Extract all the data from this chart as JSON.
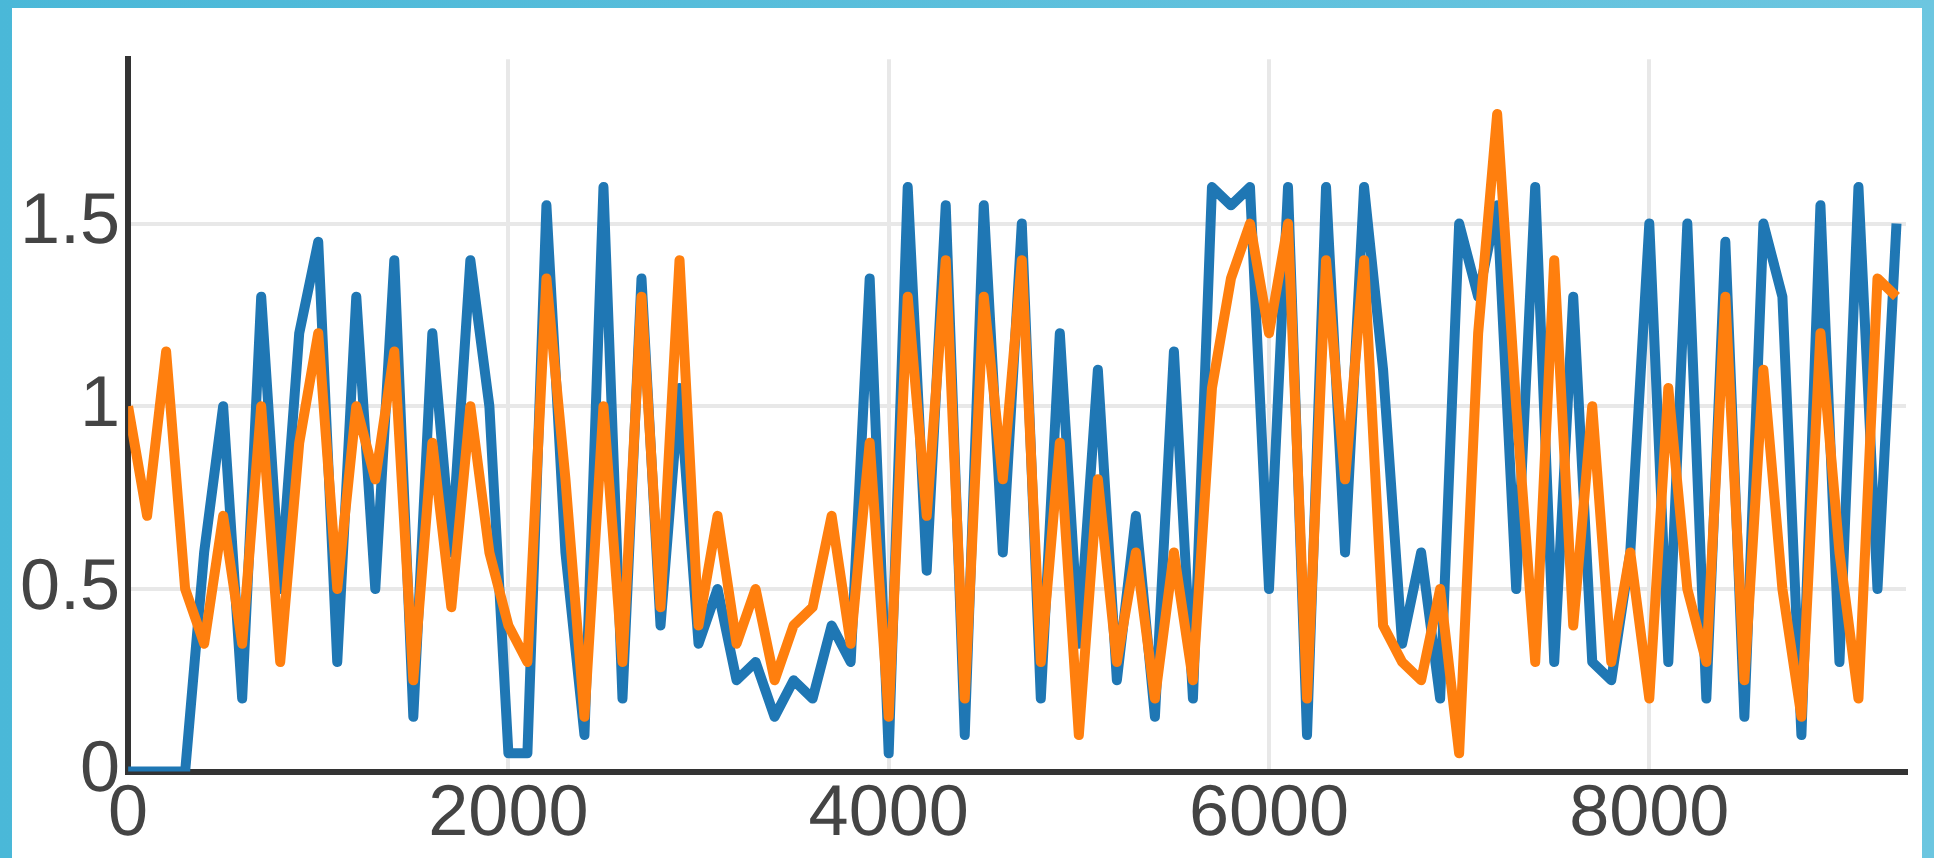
{
  "chart_data": {
    "type": "line",
    "x": [
      0,
      100,
      200,
      300,
      400,
      500,
      600,
      700,
      800,
      900,
      1000,
      1100,
      1200,
      1300,
      1400,
      1500,
      1600,
      1700,
      1800,
      1900,
      2000,
      2100,
      2200,
      2300,
      2400,
      2500,
      2600,
      2700,
      2800,
      2900,
      3000,
      3100,
      3200,
      3300,
      3400,
      3500,
      3600,
      3700,
      3800,
      3900,
      4000,
      4100,
      4200,
      4300,
      4400,
      4500,
      4600,
      4700,
      4800,
      4900,
      5000,
      5100,
      5200,
      5300,
      5400,
      5500,
      5600,
      5700,
      5800,
      5900,
      6000,
      6100,
      6200,
      6300,
      6400,
      6500,
      6600,
      6700,
      6800,
      6900,
      7000,
      7100,
      7200,
      7300,
      7400,
      7500,
      7600,
      7700,
      7800,
      7900,
      8000,
      8100,
      8200,
      8300,
      8400,
      8500,
      8600,
      8700,
      8800,
      8900,
      9000,
      9100,
      9200,
      9300
    ],
    "series": [
      {
        "color": "#1f77b4",
        "values": [
          0,
          0,
          0,
          0,
          0.6,
          1.0,
          0.2,
          1.3,
          0.5,
          1.2,
          1.45,
          0.3,
          1.3,
          0.5,
          1.4,
          0.15,
          1.2,
          0.6,
          1.4,
          1.0,
          0.05,
          0.05,
          1.55,
          0.6,
          0.1,
          1.6,
          0.2,
          1.35,
          0.4,
          1.05,
          0.35,
          0.5,
          0.25,
          0.3,
          0.15,
          0.25,
          0.2,
          0.4,
          0.3,
          1.35,
          0.05,
          1.6,
          0.55,
          1.55,
          0.1,
          1.55,
          0.6,
          1.5,
          0.2,
          1.2,
          0.35,
          1.1,
          0.25,
          0.7,
          0.15,
          1.15,
          0.2,
          1.6,
          1.55,
          1.6,
          0.5,
          1.6,
          0.1,
          1.6,
          0.6,
          1.6,
          1.1,
          0.35,
          0.6,
          0.2,
          1.5,
          1.3,
          1.55,
          0.5,
          1.6,
          0.3,
          1.3,
          0.3,
          0.25,
          0.6,
          1.5,
          0.3,
          1.5,
          0.2,
          1.45,
          0.15,
          1.5,
          1.3,
          0.1,
          1.55,
          0.3,
          1.6,
          0.5,
          1.5
        ]
      },
      {
        "color": "#ff7f0e",
        "values": [
          1.0,
          0.7,
          1.15,
          0.5,
          0.35,
          0.7,
          0.35,
          1.0,
          0.3,
          0.9,
          1.2,
          0.5,
          1.0,
          0.8,
          1.15,
          0.25,
          0.9,
          0.45,
          1.0,
          0.6,
          0.4,
          0.3,
          1.35,
          0.8,
          0.15,
          1.0,
          0.3,
          1.3,
          0.45,
          1.4,
          0.4,
          0.7,
          0.35,
          0.5,
          0.25,
          0.4,
          0.45,
          0.7,
          0.35,
          0.9,
          0.15,
          1.3,
          0.7,
          1.4,
          0.2,
          1.3,
          0.8,
          1.4,
          0.3,
          0.9,
          0.1,
          0.8,
          0.3,
          0.6,
          0.2,
          0.6,
          0.25,
          1.05,
          1.35,
          1.5,
          1.2,
          1.5,
          0.2,
          1.4,
          0.8,
          1.4,
          0.4,
          0.3,
          0.25,
          0.5,
          0.05,
          1.2,
          1.8,
          1.0,
          0.3,
          1.4,
          0.4,
          1.0,
          0.3,
          0.6,
          0.2,
          1.05,
          0.5,
          0.3,
          1.3,
          0.25,
          1.1,
          0.5,
          0.15,
          1.2,
          0.6,
          0.2,
          1.35,
          1.3
        ]
      }
    ],
    "xlim": [
      0,
      9350
    ],
    "xticks": [
      0,
      2000,
      4000,
      6000,
      8000
    ],
    "ylim": [
      0,
      1.95
    ],
    "yticks": [
      0,
      0.5,
      1,
      1.5
    ],
    "grid": true
  }
}
